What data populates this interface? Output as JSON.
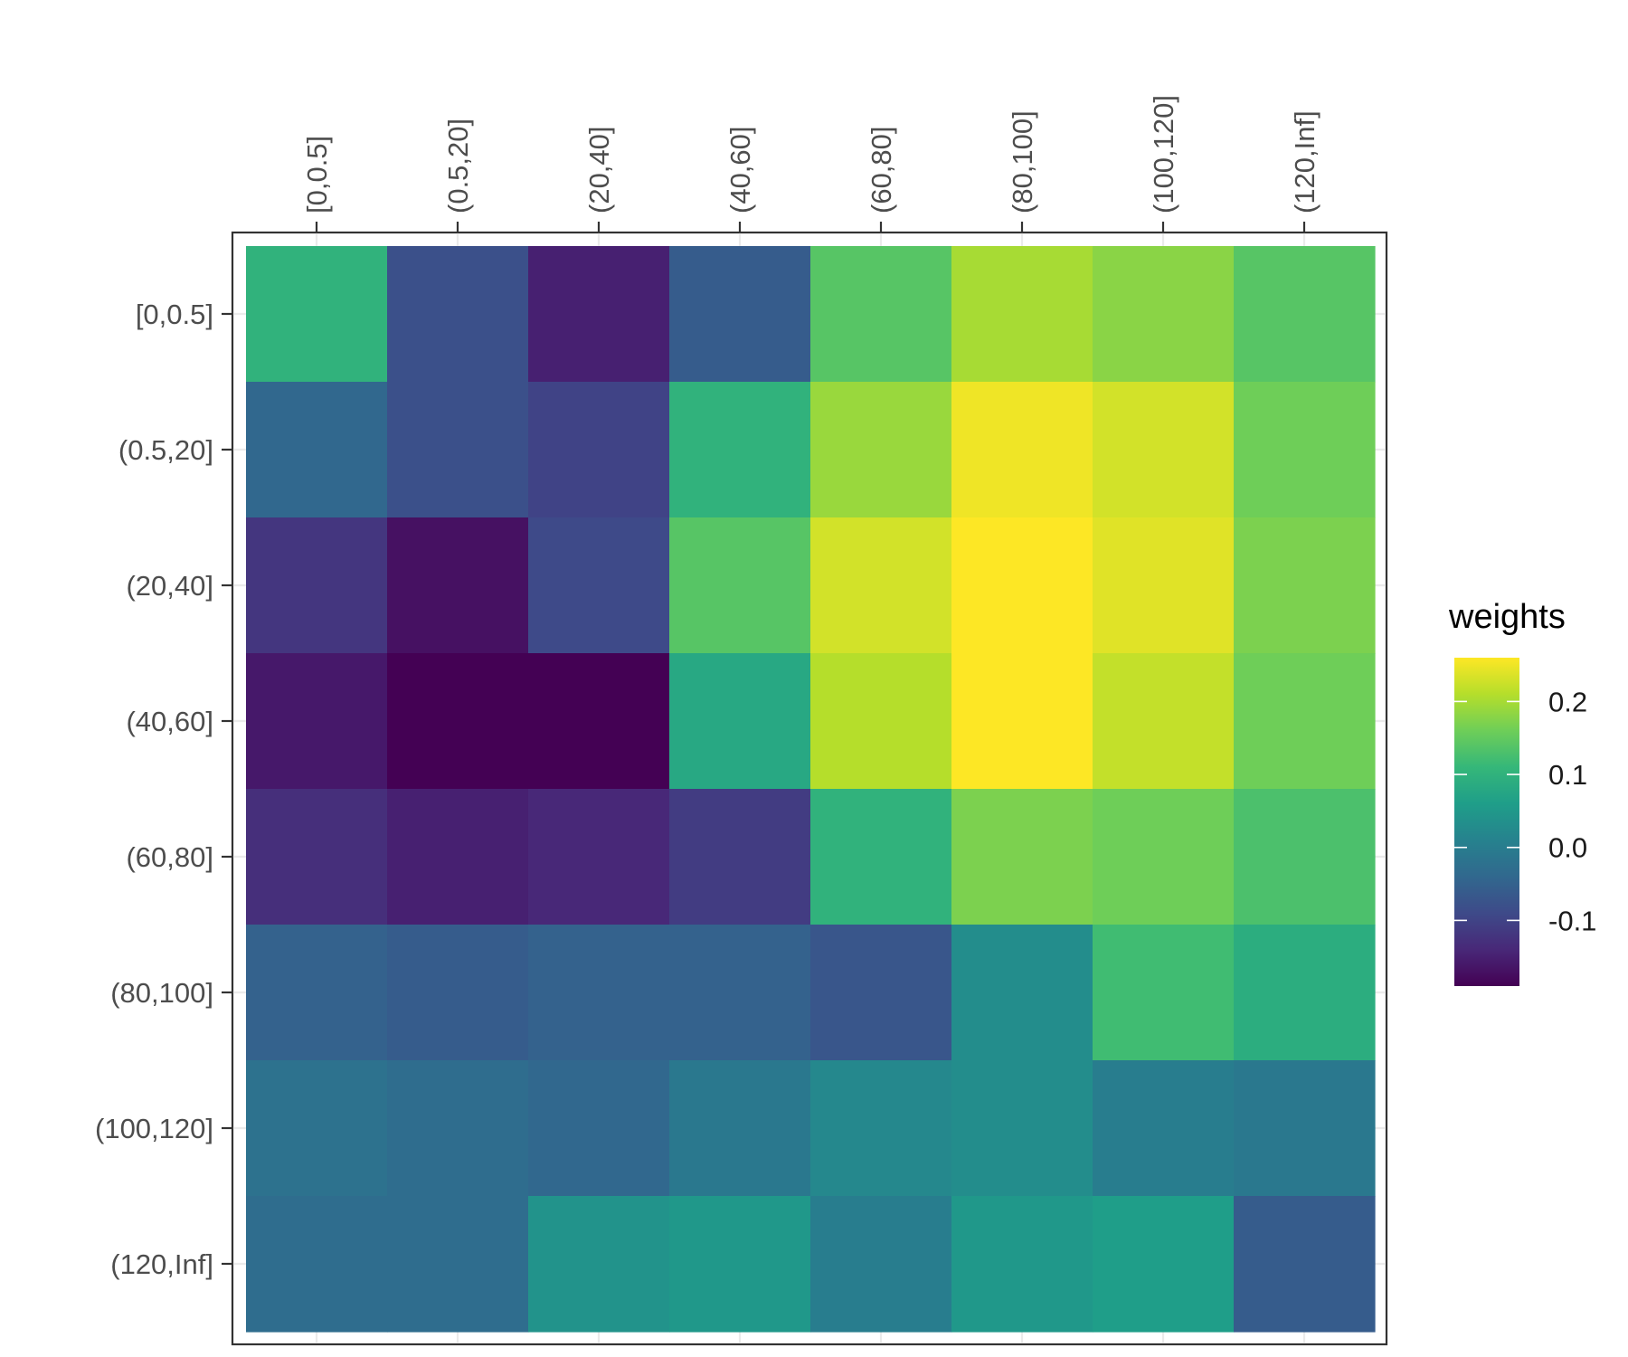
{
  "chart_data": {
    "type": "heatmap",
    "x_categories": [
      "[0,0.5]",
      "(0.5,20]",
      "(20,40]",
      "(40,60]",
      "(60,80]",
      "(80,100]",
      "(100,120]",
      "(120,Inf]"
    ],
    "y_categories": [
      "[0,0.5]",
      "(0.5,20]",
      "(20,40]",
      "(40,60]",
      "(60,80]",
      "(80,100]",
      "(100,120]",
      "(120,Inf]"
    ],
    "values": [
      [
        0.1,
        -0.08,
        -0.15,
        -0.06,
        0.14,
        0.2,
        0.18,
        0.14
      ],
      [
        -0.04,
        -0.08,
        -0.1,
        0.1,
        0.19,
        0.25,
        0.23,
        0.16
      ],
      [
        -0.12,
        -0.17,
        -0.09,
        0.14,
        0.23,
        0.26,
        0.24,
        0.17
      ],
      [
        -0.16,
        -0.19,
        -0.19,
        0.08,
        0.21,
        0.26,
        0.22,
        0.16
      ],
      [
        -0.13,
        -0.15,
        -0.14,
        -0.11,
        0.1,
        0.17,
        0.16,
        0.13
      ],
      [
        -0.05,
        -0.06,
        -0.05,
        -0.05,
        -0.07,
        0.03,
        0.12,
        0.09
      ],
      [
        -0.02,
        -0.03,
        -0.04,
        -0.01,
        0.02,
        0.03,
        0.0,
        -0.01
      ],
      [
        -0.03,
        -0.03,
        0.04,
        0.05,
        0.0,
        0.05,
        0.06,
        -0.06
      ]
    ],
    "xlabel": "",
    "ylabel": "",
    "x_axis_position": "top",
    "legend": {
      "title": "weights",
      "position": "right",
      "breaks": [
        0.2,
        0.1,
        0.0,
        -0.1
      ],
      "break_labels": [
        "0.2",
        "0.1",
        "0.0",
        "-0.1"
      ],
      "range": [
        -0.19,
        0.26
      ]
    },
    "colorscale": "viridis",
    "grid": true
  }
}
